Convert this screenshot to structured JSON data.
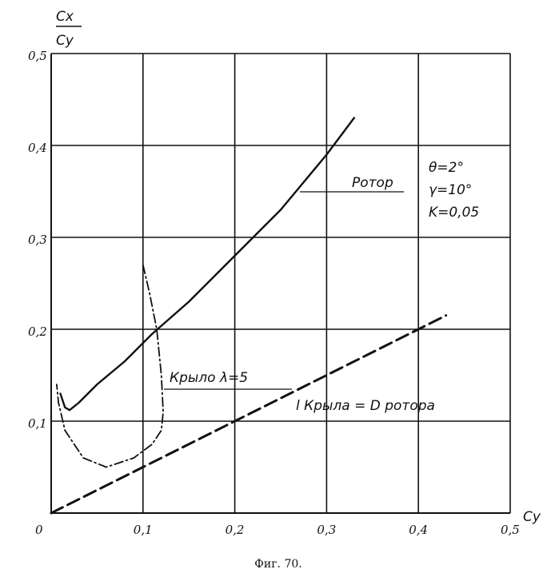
{
  "chart_data": {
    "type": "line",
    "caption": "Фиг. 70.",
    "ylabel_num": "Cx",
    "ylabel_den": "Cy",
    "xlabel": "Cy",
    "xlim": [
      0,
      0.5
    ],
    "ylim": [
      0,
      0.5
    ],
    "xticks": [
      "0",
      "0,1",
      "0,2",
      "0,3",
      "0,4",
      "0,5"
    ],
    "yticks": [
      "0",
      "0,1",
      "0,2",
      "0,3",
      "0,4",
      "0,5"
    ],
    "xtick_values": [
      0,
      0.1,
      0.2,
      0.3,
      0.4,
      0.5
    ],
    "ytick_values": [
      0,
      0.1,
      0.2,
      0.3,
      0.4,
      0.5
    ],
    "grid": true,
    "params": [
      "θ=2°",
      "γ=10°",
      "K=0,05"
    ],
    "series": [
      {
        "name": "Ротор",
        "style": "solid",
        "x": [
          0.01,
          0.015,
          0.02,
          0.03,
          0.05,
          0.08,
          0.11,
          0.15,
          0.2,
          0.25,
          0.3,
          0.33
        ],
        "y": [
          0.13,
          0.115,
          0.112,
          0.12,
          0.14,
          0.165,
          0.195,
          0.23,
          0.28,
          0.33,
          0.39,
          0.43
        ]
      },
      {
        "name": "Крыло λ=5",
        "style": "dashdot",
        "x": [
          0.1,
          0.107,
          0.115,
          0.12,
          0.122,
          0.12,
          0.11,
          0.09,
          0.06,
          0.035,
          0.015,
          0.008,
          0.006
        ],
        "y": [
          0.27,
          0.24,
          0.2,
          0.15,
          0.11,
          0.09,
          0.075,
          0.06,
          0.05,
          0.06,
          0.09,
          0.12,
          0.14
        ]
      },
      {
        "name": "l Крыла = D ротора",
        "style": "dashed",
        "x": [
          0,
          0.1,
          0.2,
          0.3,
          0.4,
          0.43
        ],
        "y": [
          0,
          0.05,
          0.1,
          0.15,
          0.2,
          0.215
        ]
      }
    ]
  }
}
